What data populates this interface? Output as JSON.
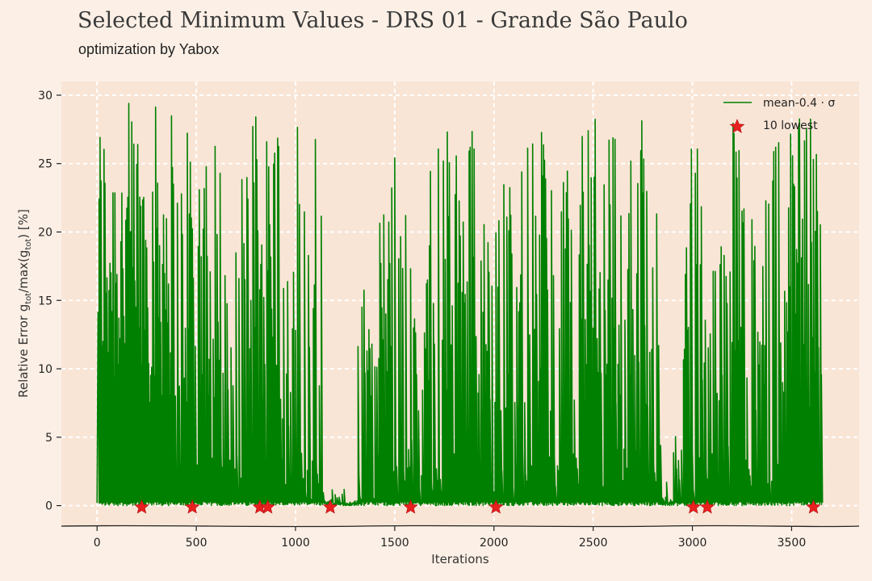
{
  "chart_data": {
    "type": "line",
    "title": "Selected Minimum Values - DRS 01 - Grande São Paulo",
    "subtitle": "optimization by Yabox",
    "xlabel": "Iterations",
    "ylabel": "Relative Error g_tot/max(g_tot) [%]",
    "ylabel_parts": {
      "pre": "Relative Error g",
      "sub1": "tot",
      "mid": "/max(g",
      "sub2": "tot",
      "post": ") [%]"
    },
    "xlim": [
      -180,
      3840
    ],
    "ylim": [
      -1.5,
      31
    ],
    "xticks": [
      0,
      500,
      1000,
      1500,
      2000,
      2500,
      3000,
      3500
    ],
    "yticks": [
      0,
      5,
      10,
      15,
      20,
      25,
      30
    ],
    "grid": true,
    "legend_position": "top-right",
    "series": [
      {
        "name": "mean-0.4 · σ",
        "color": "#008000",
        "x_count": 3650,
        "description": "oscillating optimization error between ~0 and ~29.5",
        "segments": [
          {
            "x": [
              0,
              380
            ],
            "amp": 29.5,
            "density": 1.0
          },
          {
            "x": [
              380,
              450
            ],
            "amp": 25.5,
            "density": 0.7
          },
          {
            "x": [
              450,
              610
            ],
            "amp": 29.3,
            "density": 0.9
          },
          {
            "x": [
              610,
              780
            ],
            "amp": 27.5,
            "density": 0.45
          },
          {
            "x": [
              780,
              930
            ],
            "amp": 29.3,
            "density": 0.85
          },
          {
            "x": [
              930,
              1000
            ],
            "amp": 17.2,
            "density": 0.6
          },
          {
            "x": [
              1000,
              1130
            ],
            "amp": 28.4,
            "density": 0.5
          },
          {
            "x": [
              1130,
              1310
            ],
            "amp": 1.3,
            "density": 0.3
          },
          {
            "x": [
              1310,
              1400
            ],
            "amp": 17.1,
            "density": 0.5
          },
          {
            "x": [
              1400,
              1520
            ],
            "amp": 25.5,
            "density": 0.7
          },
          {
            "x": [
              1520,
              1580
            ],
            "amp": 29.1,
            "density": 0.5
          },
          {
            "x": [
              1580,
              1670
            ],
            "amp": 17.2,
            "density": 0.6
          },
          {
            "x": [
              1670,
              1930
            ],
            "amp": 28.1,
            "density": 0.6
          },
          {
            "x": [
              1930,
              2090
            ],
            "amp": 25.2,
            "density": 0.7
          },
          {
            "x": [
              2090,
              2300
            ],
            "amp": 27.5,
            "density": 0.6
          },
          {
            "x": [
              2300,
              2430
            ],
            "amp": 25.5,
            "density": 0.5
          },
          {
            "x": [
              2430,
              2600
            ],
            "amp": 29.2,
            "density": 0.85
          },
          {
            "x": [
              2600,
              2780
            ],
            "amp": 28.9,
            "density": 0.7
          },
          {
            "x": [
              2780,
              2830
            ],
            "amp": 21.8,
            "density": 0.5
          },
          {
            "x": [
              2830,
              2950
            ],
            "amp": 5.1,
            "density": 0.3
          },
          {
            "x": [
              2950,
              3120
            ],
            "amp": 27.3,
            "density": 0.6
          },
          {
            "x": [
              3120,
              3260
            ],
            "amp": 29.2,
            "density": 0.7
          },
          {
            "x": [
              3260,
              3450
            ],
            "amp": 26.7,
            "density": 0.6
          },
          {
            "x": [
              3450,
              3650
            ],
            "amp": 28.6,
            "density": 0.95
          }
        ]
      },
      {
        "name": "10 lowest",
        "type": "scatter",
        "marker": "star",
        "color": "#e82020",
        "points": [
          {
            "x": 225,
            "y": 0.0
          },
          {
            "x": 480,
            "y": 0.0
          },
          {
            "x": 820,
            "y": 0.0
          },
          {
            "x": 860,
            "y": 0.0
          },
          {
            "x": 1175,
            "y": 0.0
          },
          {
            "x": 1580,
            "y": 0.0
          },
          {
            "x": 2010,
            "y": 0.0
          },
          {
            "x": 3005,
            "y": 0.0
          },
          {
            "x": 3075,
            "y": 0.0
          },
          {
            "x": 3610,
            "y": 0.0
          }
        ]
      }
    ]
  }
}
